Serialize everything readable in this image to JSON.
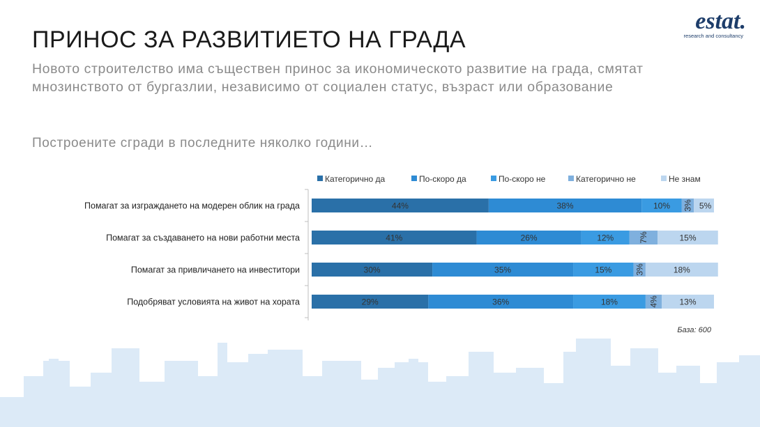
{
  "title": "ПРИНОС ЗА РАЗВИТИЕТО НА ГРАДА",
  "subtitle": "Новото строителство има съществен принос за икономическото развитие на града, смятат мнозинството от бургазлии, независимо от социален статус, възраст или образование",
  "question": "Построените сгради в последните няколко години…",
  "logo": {
    "name": "estat.",
    "tagline": "research and consultancy"
  },
  "base_note": "База: 600",
  "colors": {
    "skyline": "#dceaf7",
    "axis": "#bfbfbf"
  },
  "chart_data": {
    "type": "bar",
    "orientation": "horizontal",
    "stacked": true,
    "xlim": [
      0,
      100
    ],
    "legend_position": "top",
    "categories": [
      "Помагат за изграждането на модерен облик на града",
      "Помагат за създаването на нови работни места",
      "Помагат за привличането на инвеститори",
      "Подобряват условията на живот на хората"
    ],
    "series": [
      {
        "name": "Категорично да",
        "color": "#2a70a8",
        "values": [
          44,
          41,
          30,
          29
        ],
        "labels": [
          "44%",
          "41%",
          "30%",
          "29%"
        ]
      },
      {
        "name": "По-скоро да",
        "color": "#2e8bd4",
        "values": [
          38,
          26,
          35,
          36
        ],
        "labels": [
          "38%",
          "26%",
          "35%",
          "36%"
        ]
      },
      {
        "name": "По-скоро не",
        "color": "#3a9be2",
        "values": [
          10,
          12,
          15,
          18
        ],
        "labels": [
          "10%",
          "12%",
          "15%",
          "18%"
        ]
      },
      {
        "name": "Категорично не",
        "color": "#7fb0de",
        "values": [
          3,
          7,
          3,
          4
        ],
        "labels": [
          "3%",
          "7%",
          "3%",
          "4%"
        ]
      },
      {
        "name": "Не знам",
        "color": "#bcd6ef",
        "values": [
          5,
          15,
          18,
          13
        ],
        "labels": [
          "5%",
          "15%",
          "18%",
          "13%"
        ]
      }
    ]
  }
}
